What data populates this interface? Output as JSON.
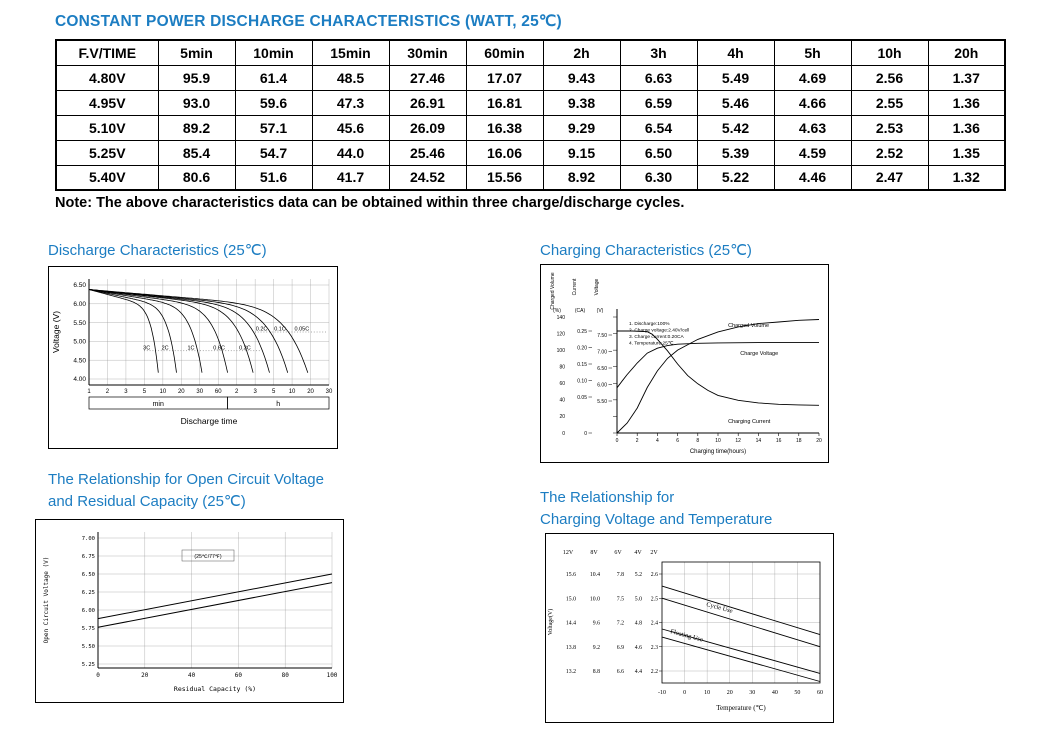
{
  "page": {
    "title": "CONSTANT POWER DISCHARGE CHARACTERISTICS (WATT, 25℃)",
    "note": "Note: The above characteristics data can be obtained within three charge/discharge cycles.",
    "accent_color": "#1c7dc2"
  },
  "table": {
    "headers": [
      "F.V/TIME",
      "5min",
      "10min",
      "15min",
      "30min",
      "60min",
      "2h",
      "3h",
      "4h",
      "5h",
      "10h",
      "20h"
    ],
    "rows": [
      [
        "4.80V",
        "95.9",
        "61.4",
        "48.5",
        "27.46",
        "17.07",
        "9.43",
        "6.63",
        "5.49",
        "4.69",
        "2.56",
        "1.37"
      ],
      [
        "4.95V",
        "93.0",
        "59.6",
        "47.3",
        "26.91",
        "16.81",
        "9.38",
        "6.59",
        "5.46",
        "4.66",
        "2.55",
        "1.36"
      ],
      [
        "5.10V",
        "89.2",
        "57.1",
        "45.6",
        "26.09",
        "16.38",
        "9.29",
        "6.54",
        "5.42",
        "4.63",
        "2.53",
        "1.36"
      ],
      [
        "5.25V",
        "85.4",
        "54.7",
        "44.0",
        "25.46",
        "16.06",
        "9.15",
        "6.50",
        "5.39",
        "4.59",
        "2.52",
        "1.35"
      ],
      [
        "5.40V",
        "80.6",
        "51.6",
        "41.7",
        "24.52",
        "15.56",
        "8.92",
        "6.30",
        "5.22",
        "4.46",
        "2.47",
        "1.32"
      ]
    ]
  },
  "sections": {
    "discharge": {
      "title": "Discharge Characteristics (25℃)"
    },
    "charging": {
      "title": "Charging Characteristics (25℃)"
    },
    "ocv": {
      "title_line1": "The Relationship for Open Circuit Voltage",
      "title_line2": "and Residual Capacity (25℃)"
    },
    "temp": {
      "title_line1": "The Relationship for",
      "title_line2": "Charging Voltage and Temperature"
    }
  },
  "chart_data": [
    {
      "id": "discharge",
      "type": "line",
      "title": "Discharge Characteristics (25℃)",
      "ylabel": "Voltage (V)",
      "xlabel": "Discharge time",
      "ylim": [
        4.0,
        6.5
      ],
      "y_ticks": [
        6.5,
        6.0,
        5.5,
        5.0,
        4.5,
        4.0
      ],
      "x_ticks_min": [
        "1",
        "2",
        "3",
        "5",
        "10",
        "20",
        "30",
        "60"
      ],
      "x_ticks_h": [
        "2",
        "3",
        "5",
        "10",
        "20",
        "30"
      ],
      "x_unit_labels": [
        "min",
        "h"
      ],
      "grid": true,
      "start_voltage": 6.38,
      "end_voltage": 4.0,
      "series": [
        {
          "name": "3C",
          "end_tick": 3.8
        },
        {
          "name": "2C",
          "end_tick": 4.8
        },
        {
          "name": "1C",
          "end_tick": 6.2
        },
        {
          "name": "0.6C",
          "end_tick": 7.6
        },
        {
          "name": "0.3C",
          "end_tick": 9.0
        },
        {
          "name": "0.2C",
          "end_tick": 9.9
        },
        {
          "name": "0.1C",
          "end_tick": 10.9
        },
        {
          "name": "0.05C",
          "end_tick": 12.0
        }
      ]
    },
    {
      "id": "charging",
      "type": "line",
      "title": "Charging Characteristics (25℃)",
      "axes": {
        "left_columns": [
          {
            "title": "Charged Volume",
            "unit": "(%)",
            "ticks": [
              140,
              120,
              100,
              80,
              60,
              40,
              20,
              0
            ]
          },
          {
            "title": "Current",
            "unit": "(CA)",
            "ticks": [
              0.25,
              0.2,
              0.15,
              0.1,
              0.05,
              0
            ]
          },
          {
            "title": "Voltage",
            "unit": "(V)",
            "ticks": [
              7.5,
              7.0,
              6.5,
              6.0,
              5.5
            ]
          }
        ],
        "x_ticks": [
          0,
          2,
          4,
          6,
          8,
          10,
          12,
          14,
          16,
          18,
          20
        ],
        "xlabel": "Charging time(hours)"
      },
      "legend_lines": [
        "1. Discharge:100%",
        "2. Charge voltage:2.40V/cell",
        "3. Charge current:0.20CA",
        "4. Temperature:25℃"
      ],
      "series": [
        {
          "name": "Charged Volume",
          "scale": "pct",
          "points": [
            [
              0,
              0
            ],
            [
              1,
              12
            ],
            [
              2,
              30
            ],
            [
              3,
              55
            ],
            [
              4,
              75
            ],
            [
              5,
              90
            ],
            [
              6,
              100
            ],
            [
              8,
              113
            ],
            [
              10,
              122
            ],
            [
              12,
              128
            ],
            [
              14,
              132
            ],
            [
              16,
              134
            ],
            [
              18,
              136
            ],
            [
              20,
              137
            ]
          ]
        },
        {
          "name": "Charge Voltage",
          "scale": "v",
          "points": [
            [
              0,
              5.9
            ],
            [
              0.5,
              6.1
            ],
            [
              1,
              6.3
            ],
            [
              2,
              6.65
            ],
            [
              3,
              6.95
            ],
            [
              4,
              7.1
            ],
            [
              5,
              7.18
            ],
            [
              6,
              7.22
            ],
            [
              8,
              7.25
            ],
            [
              10,
              7.26
            ],
            [
              14,
              7.27
            ],
            [
              20,
              7.27
            ]
          ]
        },
        {
          "name": "Charging Current",
          "scale": "ca",
          "points": [
            [
              0,
              0.25
            ],
            [
              1.5,
              0.25
            ],
            [
              3,
              0.248
            ],
            [
              3.5,
              0.24
            ],
            [
              4,
              0.225
            ],
            [
              5,
              0.19
            ],
            [
              6,
              0.15
            ],
            [
              7,
              0.115
            ],
            [
              8,
              0.09
            ],
            [
              9,
              0.07
            ],
            [
              10,
              0.055
            ],
            [
              12,
              0.04
            ],
            [
              14,
              0.032
            ],
            [
              16,
              0.028
            ],
            [
              18,
              0.026
            ],
            [
              20,
              0.025
            ]
          ]
        }
      ]
    },
    {
      "id": "ocv",
      "type": "line",
      "title": "The Relationship for Open Circuit Voltage and Residual Capacity (25℃)",
      "ylabel": "Open Circuit Voltage (V)",
      "xlabel": "Residual Capacity (%)",
      "annotation": "(25℃/77℉)",
      "ylim": [
        5.1,
        7.1
      ],
      "y_ticks": [
        7.0,
        6.75,
        6.5,
        6.25,
        6.0,
        5.75,
        5.5,
        5.25
      ],
      "x_ticks": [
        0,
        20,
        40,
        60,
        80,
        100
      ],
      "grid": true,
      "series": [
        {
          "name": "upper",
          "points": [
            [
              0,
              5.88
            ],
            [
              100,
              6.5
            ]
          ]
        },
        {
          "name": "lower",
          "points": [
            [
              0,
              5.76
            ],
            [
              100,
              6.38
            ]
          ]
        }
      ]
    },
    {
      "id": "temp",
      "type": "line",
      "title": "The Relationship for Charging Voltage and Temperature",
      "ylabel": "Voltage(V)",
      "xlabel": "Temperature (℃)",
      "column_headers": [
        "12V",
        "8V",
        "6V",
        "4V",
        "2V"
      ],
      "scale_rows": [
        [
          "15.6",
          "10.4",
          "7.8",
          "5.2",
          "2.6"
        ],
        [
          "15.0",
          "10.0",
          "7.5",
          "5.0",
          "2.5"
        ],
        [
          "14.4",
          "9.6",
          "7.2",
          "4.8",
          "2.4"
        ],
        [
          "13.8",
          "9.2",
          "6.9",
          "4.6",
          "2.3"
        ],
        [
          "13.2",
          "8.8",
          "6.6",
          "4.4",
          "2.2"
        ]
      ],
      "x_ticks": [
        -10,
        0,
        10,
        20,
        30,
        40,
        50,
        60
      ],
      "grid": true,
      "series": [
        {
          "name": "Cycle Use",
          "band": [
            [
              [
                -10,
                7.65
              ],
              [
                60,
                7.05
              ]
            ],
            [
              [
                -10,
                7.5
              ],
              [
                60,
                6.9
              ]
            ]
          ]
        },
        {
          "name": "Floating Use",
          "band": [
            [
              [
                -10,
                7.12
              ],
              [
                60,
                6.57
              ]
            ],
            [
              [
                -10,
                7.02
              ],
              [
                60,
                6.47
              ]
            ]
          ]
        }
      ]
    }
  ]
}
